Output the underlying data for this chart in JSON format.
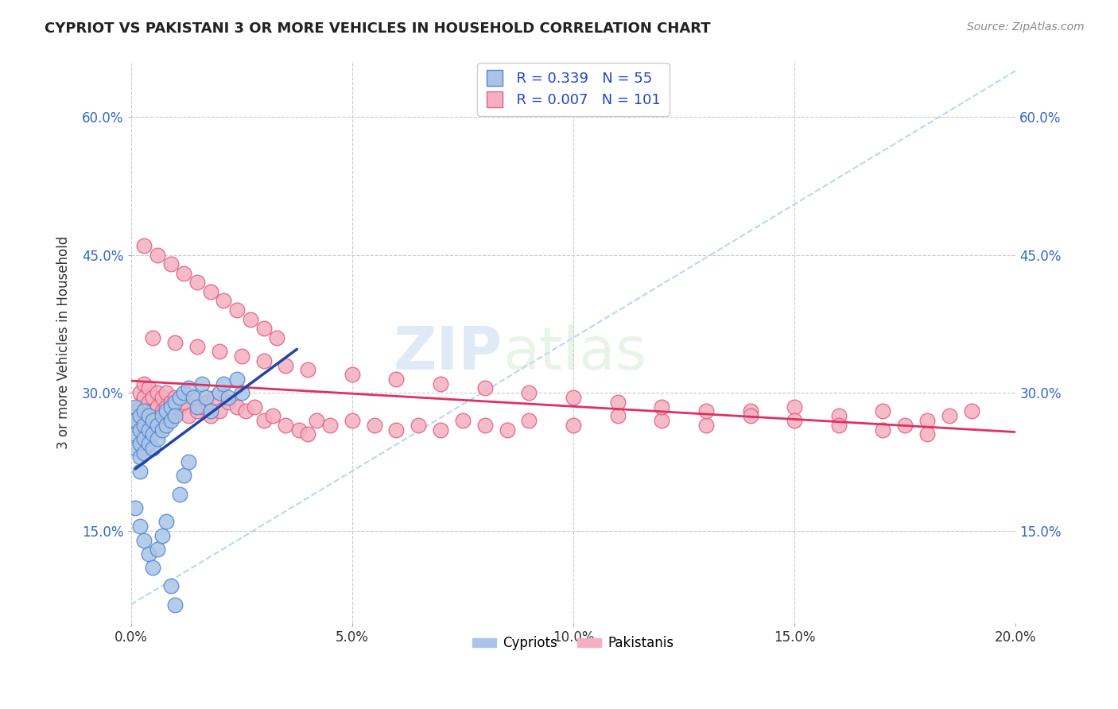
{
  "title": "CYPRIOT VS PAKISTANI 3 OR MORE VEHICLES IN HOUSEHOLD CORRELATION CHART",
  "source_text": "Source: ZipAtlas.com",
  "ylabel": "3 or more Vehicles in Household",
  "watermark_zip": "ZIP",
  "watermark_atlas": "atlas",
  "legend_r1": "R = 0.339",
  "legend_n1": "N = 55",
  "legend_r2": "R = 0.007",
  "legend_n2": "N = 101",
  "xlim": [
    0.0,
    0.2
  ],
  "ylim": [
    0.05,
    0.66
  ],
  "xtick_labels": [
    "0.0%",
    "5.0%",
    "10.0%",
    "15.0%",
    "20.0%"
  ],
  "xtick_values": [
    0.0,
    0.05,
    0.1,
    0.15,
    0.2
  ],
  "ytick_labels": [
    "15.0%",
    "30.0%",
    "45.0%",
    "60.0%"
  ],
  "ytick_values": [
    0.15,
    0.3,
    0.45,
    0.6
  ],
  "cypriot_color": "#aac4e8",
  "pakistani_color": "#f5afc0",
  "cypriot_edge": "#5588cc",
  "pakistani_edge": "#e06080",
  "trend_cypriot_color": "#2244aa",
  "trend_pakistani_color": "#e03060",
  "diag_color": "#aaccee",
  "grid_color": "#cccccc",
  "background_color": "#ffffff",
  "cypriot_x": [
    0.001,
    0.001,
    0.001,
    0.001,
    0.002,
    0.002,
    0.002,
    0.002,
    0.002,
    0.003,
    0.003,
    0.003,
    0.003,
    0.004,
    0.004,
    0.004,
    0.005,
    0.005,
    0.005,
    0.006,
    0.006,
    0.007,
    0.007,
    0.008,
    0.008,
    0.009,
    0.009,
    0.01,
    0.01,
    0.011,
    0.012,
    0.013,
    0.014,
    0.015,
    0.016,
    0.017,
    0.018,
    0.02,
    0.021,
    0.022,
    0.024,
    0.025,
    0.001,
    0.002,
    0.003,
    0.004,
    0.005,
    0.006,
    0.007,
    0.008,
    0.009,
    0.01,
    0.011,
    0.012,
    0.013
  ],
  "cypriot_y": [
    0.285,
    0.27,
    0.255,
    0.24,
    0.275,
    0.26,
    0.245,
    0.23,
    0.215,
    0.28,
    0.265,
    0.25,
    0.235,
    0.275,
    0.26,
    0.245,
    0.27,
    0.255,
    0.24,
    0.265,
    0.25,
    0.275,
    0.26,
    0.28,
    0.265,
    0.285,
    0.27,
    0.29,
    0.275,
    0.295,
    0.3,
    0.305,
    0.295,
    0.285,
    0.31,
    0.295,
    0.28,
    0.3,
    0.31,
    0.295,
    0.315,
    0.3,
    0.175,
    0.155,
    0.14,
    0.125,
    0.11,
    0.13,
    0.145,
    0.16,
    0.09,
    0.07,
    0.19,
    0.21,
    0.225
  ],
  "pakistani_x": [
    0.001,
    0.001,
    0.002,
    0.002,
    0.002,
    0.003,
    0.003,
    0.003,
    0.003,
    0.004,
    0.004,
    0.004,
    0.005,
    0.005,
    0.005,
    0.006,
    0.006,
    0.006,
    0.007,
    0.007,
    0.008,
    0.008,
    0.009,
    0.009,
    0.01,
    0.01,
    0.011,
    0.012,
    0.013,
    0.014,
    0.015,
    0.016,
    0.017,
    0.018,
    0.019,
    0.02,
    0.022,
    0.024,
    0.026,
    0.028,
    0.03,
    0.032,
    0.035,
    0.038,
    0.04,
    0.042,
    0.045,
    0.05,
    0.055,
    0.06,
    0.065,
    0.07,
    0.075,
    0.08,
    0.085,
    0.09,
    0.1,
    0.11,
    0.12,
    0.13,
    0.14,
    0.15,
    0.16,
    0.17,
    0.175,
    0.18,
    0.185,
    0.19,
    0.005,
    0.01,
    0.015,
    0.02,
    0.025,
    0.03,
    0.035,
    0.04,
    0.05,
    0.06,
    0.07,
    0.08,
    0.09,
    0.1,
    0.11,
    0.12,
    0.13,
    0.14,
    0.15,
    0.16,
    0.17,
    0.18,
    0.003,
    0.006,
    0.009,
    0.012,
    0.015,
    0.018,
    0.021,
    0.024,
    0.027,
    0.03,
    0.033
  ],
  "pakistani_y": [
    0.28,
    0.265,
    0.3,
    0.285,
    0.27,
    0.31,
    0.295,
    0.28,
    0.265,
    0.305,
    0.29,
    0.275,
    0.295,
    0.28,
    0.265,
    0.3,
    0.285,
    0.27,
    0.295,
    0.28,
    0.3,
    0.285,
    0.29,
    0.275,
    0.295,
    0.28,
    0.285,
    0.29,
    0.275,
    0.295,
    0.28,
    0.285,
    0.29,
    0.275,
    0.295,
    0.28,
    0.29,
    0.285,
    0.28,
    0.285,
    0.27,
    0.275,
    0.265,
    0.26,
    0.255,
    0.27,
    0.265,
    0.27,
    0.265,
    0.26,
    0.265,
    0.26,
    0.27,
    0.265,
    0.26,
    0.27,
    0.265,
    0.275,
    0.27,
    0.265,
    0.28,
    0.285,
    0.275,
    0.28,
    0.265,
    0.27,
    0.275,
    0.28,
    0.36,
    0.355,
    0.35,
    0.345,
    0.34,
    0.335,
    0.33,
    0.325,
    0.32,
    0.315,
    0.31,
    0.305,
    0.3,
    0.295,
    0.29,
    0.285,
    0.28,
    0.275,
    0.27,
    0.265,
    0.26,
    0.255,
    0.46,
    0.45,
    0.44,
    0.43,
    0.42,
    0.41,
    0.4,
    0.39,
    0.38,
    0.37,
    0.36
  ]
}
